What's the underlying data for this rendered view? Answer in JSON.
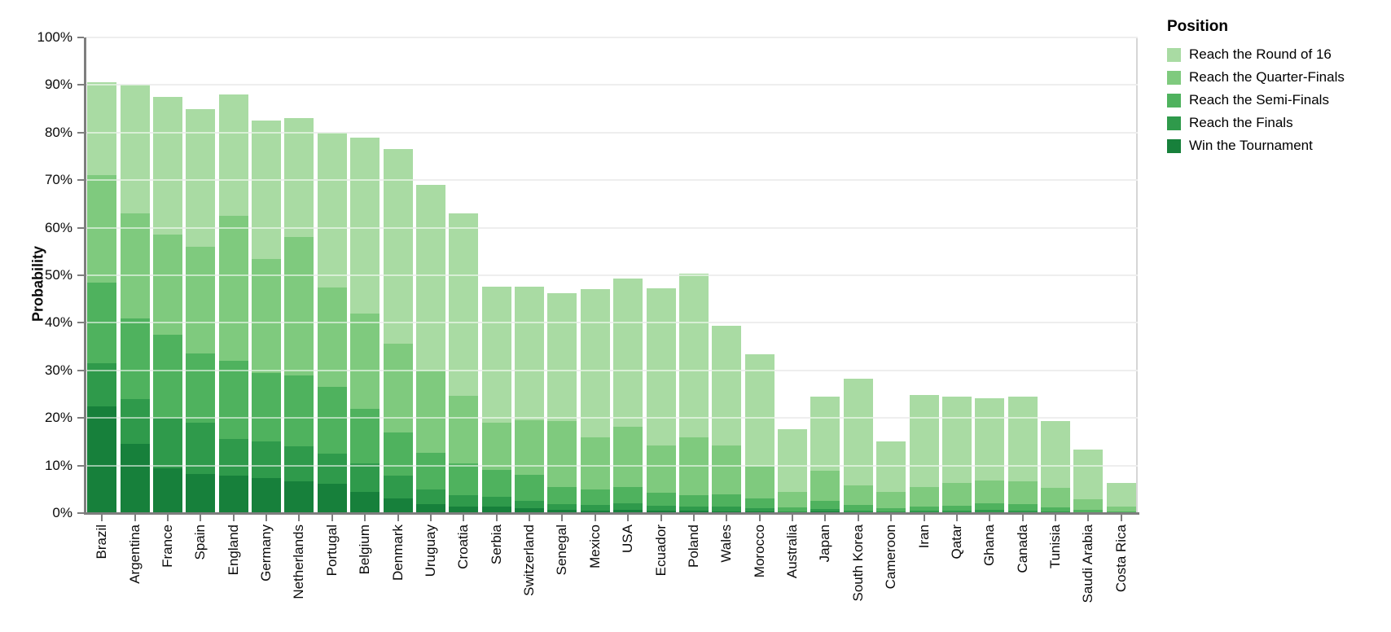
{
  "chart": {
    "y_axis": {
      "title": "Probability",
      "tick_labels": [
        "0%",
        "10%",
        "20%",
        "30%",
        "40%",
        "50%",
        "60%",
        "70%",
        "80%",
        "90%",
        "100%"
      ]
    },
    "legend": {
      "title": "Position",
      "items": [
        {
          "label": "Reach the Round of 16",
          "color": "#a9dba3"
        },
        {
          "label": "Reach the Quarter-Finals",
          "color": "#7fca7e"
        },
        {
          "label": "Reach the Semi-Finals",
          "color": "#4fb25e"
        },
        {
          "label": "Reach the Finals",
          "color": "#2f9a4b"
        },
        {
          "label": "Win the Tournament",
          "color": "#17803b"
        }
      ]
    }
  },
  "chart_data": {
    "type": "bar",
    "stacking": "layered",
    "title": "",
    "xlabel": "",
    "ylabel": "Probability",
    "ylim": [
      0,
      100
    ],
    "grid": true,
    "legend_position": "right",
    "y_tick_format": "percent",
    "categories": [
      "Brazil",
      "Argentina",
      "France",
      "Spain",
      "England",
      "Germany",
      "Netherlands",
      "Portugal",
      "Belgium",
      "Denmark",
      "Uruguay",
      "Croatia",
      "Serbia",
      "Switzerland",
      "Senegal",
      "Mexico",
      "USA",
      "Ecuador",
      "Poland",
      "Wales",
      "Morocco",
      "Australia",
      "Japan",
      "South Korea",
      "Cameroon",
      "Iran",
      "Qatar",
      "Ghana",
      "Canada",
      "Tunisia",
      "Saudi Arabia",
      "Costa Rica"
    ],
    "series": [
      {
        "name": "Reach the Round of 16",
        "color": "#a9dba3",
        "values": [
          90.5,
          90,
          87.5,
          85,
          88,
          82.5,
          83,
          80,
          79,
          76.5,
          69,
          63,
          47.6,
          47.6,
          46.3,
          47.1,
          49.3,
          47.2,
          50.3,
          39.4,
          33.4,
          17.7,
          24.5,
          28.3,
          15.1,
          24.9,
          24.5,
          24.2,
          24.5,
          19.3,
          13.4,
          6.4
        ]
      },
      {
        "name": "Reach the Quarter-Finals",
        "color": "#7fca7e",
        "values": [
          71,
          63,
          58.5,
          56,
          62.5,
          53.5,
          58,
          47.5,
          42,
          35.7,
          30,
          24.7,
          19,
          19.5,
          19.3,
          16,
          18.1,
          14.3,
          15.9,
          14.3,
          9.9,
          4.5,
          8.9,
          5.8,
          4.4,
          5.4,
          6.4,
          6.8,
          6.6,
          5.3,
          2.9,
          1.4
        ]
      },
      {
        "name": "Reach the Semi-Finals",
        "color": "#4fb25e",
        "values": [
          48.5,
          41,
          37.5,
          33.5,
          32,
          29.5,
          29,
          26.5,
          22,
          17,
          12.6,
          10.5,
          9,
          8,
          5.5,
          5,
          5.5,
          4.3,
          3.8,
          4,
          3,
          1.2,
          2.6,
          1.8,
          1.1,
          1.4,
          1.6,
          2,
          1.9,
          1.2,
          0.7,
          0.3
        ]
      },
      {
        "name": "Reach the Finals",
        "color": "#2f9a4b",
        "values": [
          31.5,
          24,
          20,
          19,
          15.5,
          15,
          14,
          12.5,
          10.5,
          7.8,
          5,
          3.8,
          3.5,
          2.6,
          1.9,
          1.8,
          2,
          1.5,
          1.4,
          1.3,
          1.1,
          0.4,
          0.9,
          0.6,
          0.3,
          0.5,
          0.5,
          0.7,
          0.6,
          0.4,
          0.2,
          0.1
        ]
      },
      {
        "name": "Win the Tournament",
        "color": "#17803b",
        "values": [
          22.5,
          14.5,
          9.5,
          8.2,
          7.8,
          7.4,
          6.6,
          6.1,
          4.5,
          3.1,
          1.9,
          1.4,
          1.4,
          1,
          0.7,
          0.6,
          0.7,
          0.5,
          0.5,
          0.4,
          0.3,
          0.1,
          0.3,
          0.2,
          0.1,
          0.15,
          0.15,
          0.2,
          0.2,
          0.1,
          0.05,
          0.03
        ]
      }
    ]
  }
}
